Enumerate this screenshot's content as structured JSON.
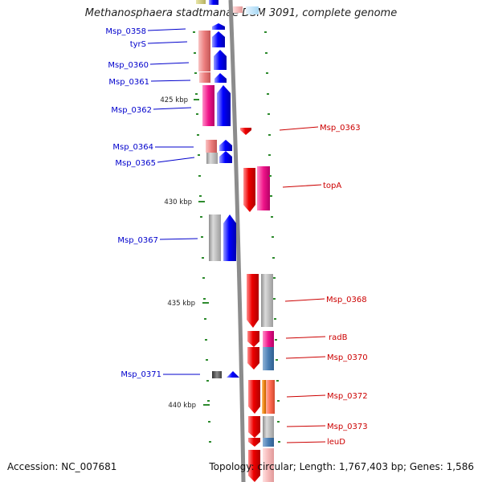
{
  "title": "Methanosphaera stadtmanae DSM 3091, complete genome",
  "footer": {
    "accession": "Accession: NC_007681",
    "stats": "Topology: circular; Length: 1,767,403 bp; Genes: 1,586"
  },
  "colors": {
    "forward_label": "#0000cc",
    "reverse_label": "#cc0000",
    "backbone": "#8c8c8c",
    "tick": "#2e8b2e",
    "forward_arrow": "#0000ff",
    "reverse_arrow": "#ee0000"
  },
  "kbp_ticks": [
    "425 kbp",
    "430 kbp",
    "435 kbp",
    "440 kbp"
  ],
  "forward_genes": [
    "Msp_0358",
    "tyrS",
    "Msp_0360",
    "Msp_0361",
    "Msp_0362",
    "Msp_0364",
    "Msp_0365",
    "Msp_0367",
    "Msp_0371"
  ],
  "reverse_genes": [
    "Msp_0363",
    "topA",
    "Msp_0368",
    "radB",
    "Msp_0370",
    "Msp_0372",
    "Msp_0373",
    "leuD"
  ]
}
